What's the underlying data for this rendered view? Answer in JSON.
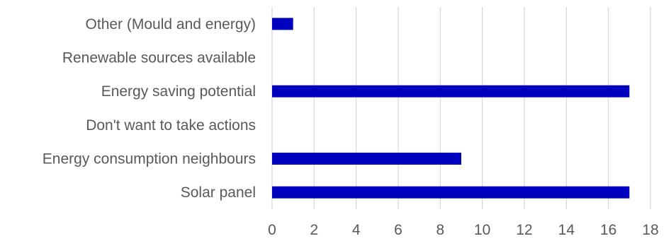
{
  "chart_data": {
    "type": "bar",
    "orientation": "horizontal",
    "categories": [
      "Other (Mould and energy)",
      "Renewable sources available",
      "Energy saving potential",
      "Don't want to take actions",
      "Energy consumption neighbours",
      "Solar panel"
    ],
    "values": [
      1,
      0,
      17,
      0,
      9,
      17
    ],
    "title": "",
    "xlabel": "",
    "ylabel": "",
    "xlim": [
      0,
      18
    ],
    "x_ticks": [
      0,
      2,
      4,
      6,
      8,
      10,
      12,
      14,
      16,
      18
    ],
    "grid": "vertical",
    "legend": "none",
    "bar_color": "#0000bf"
  }
}
